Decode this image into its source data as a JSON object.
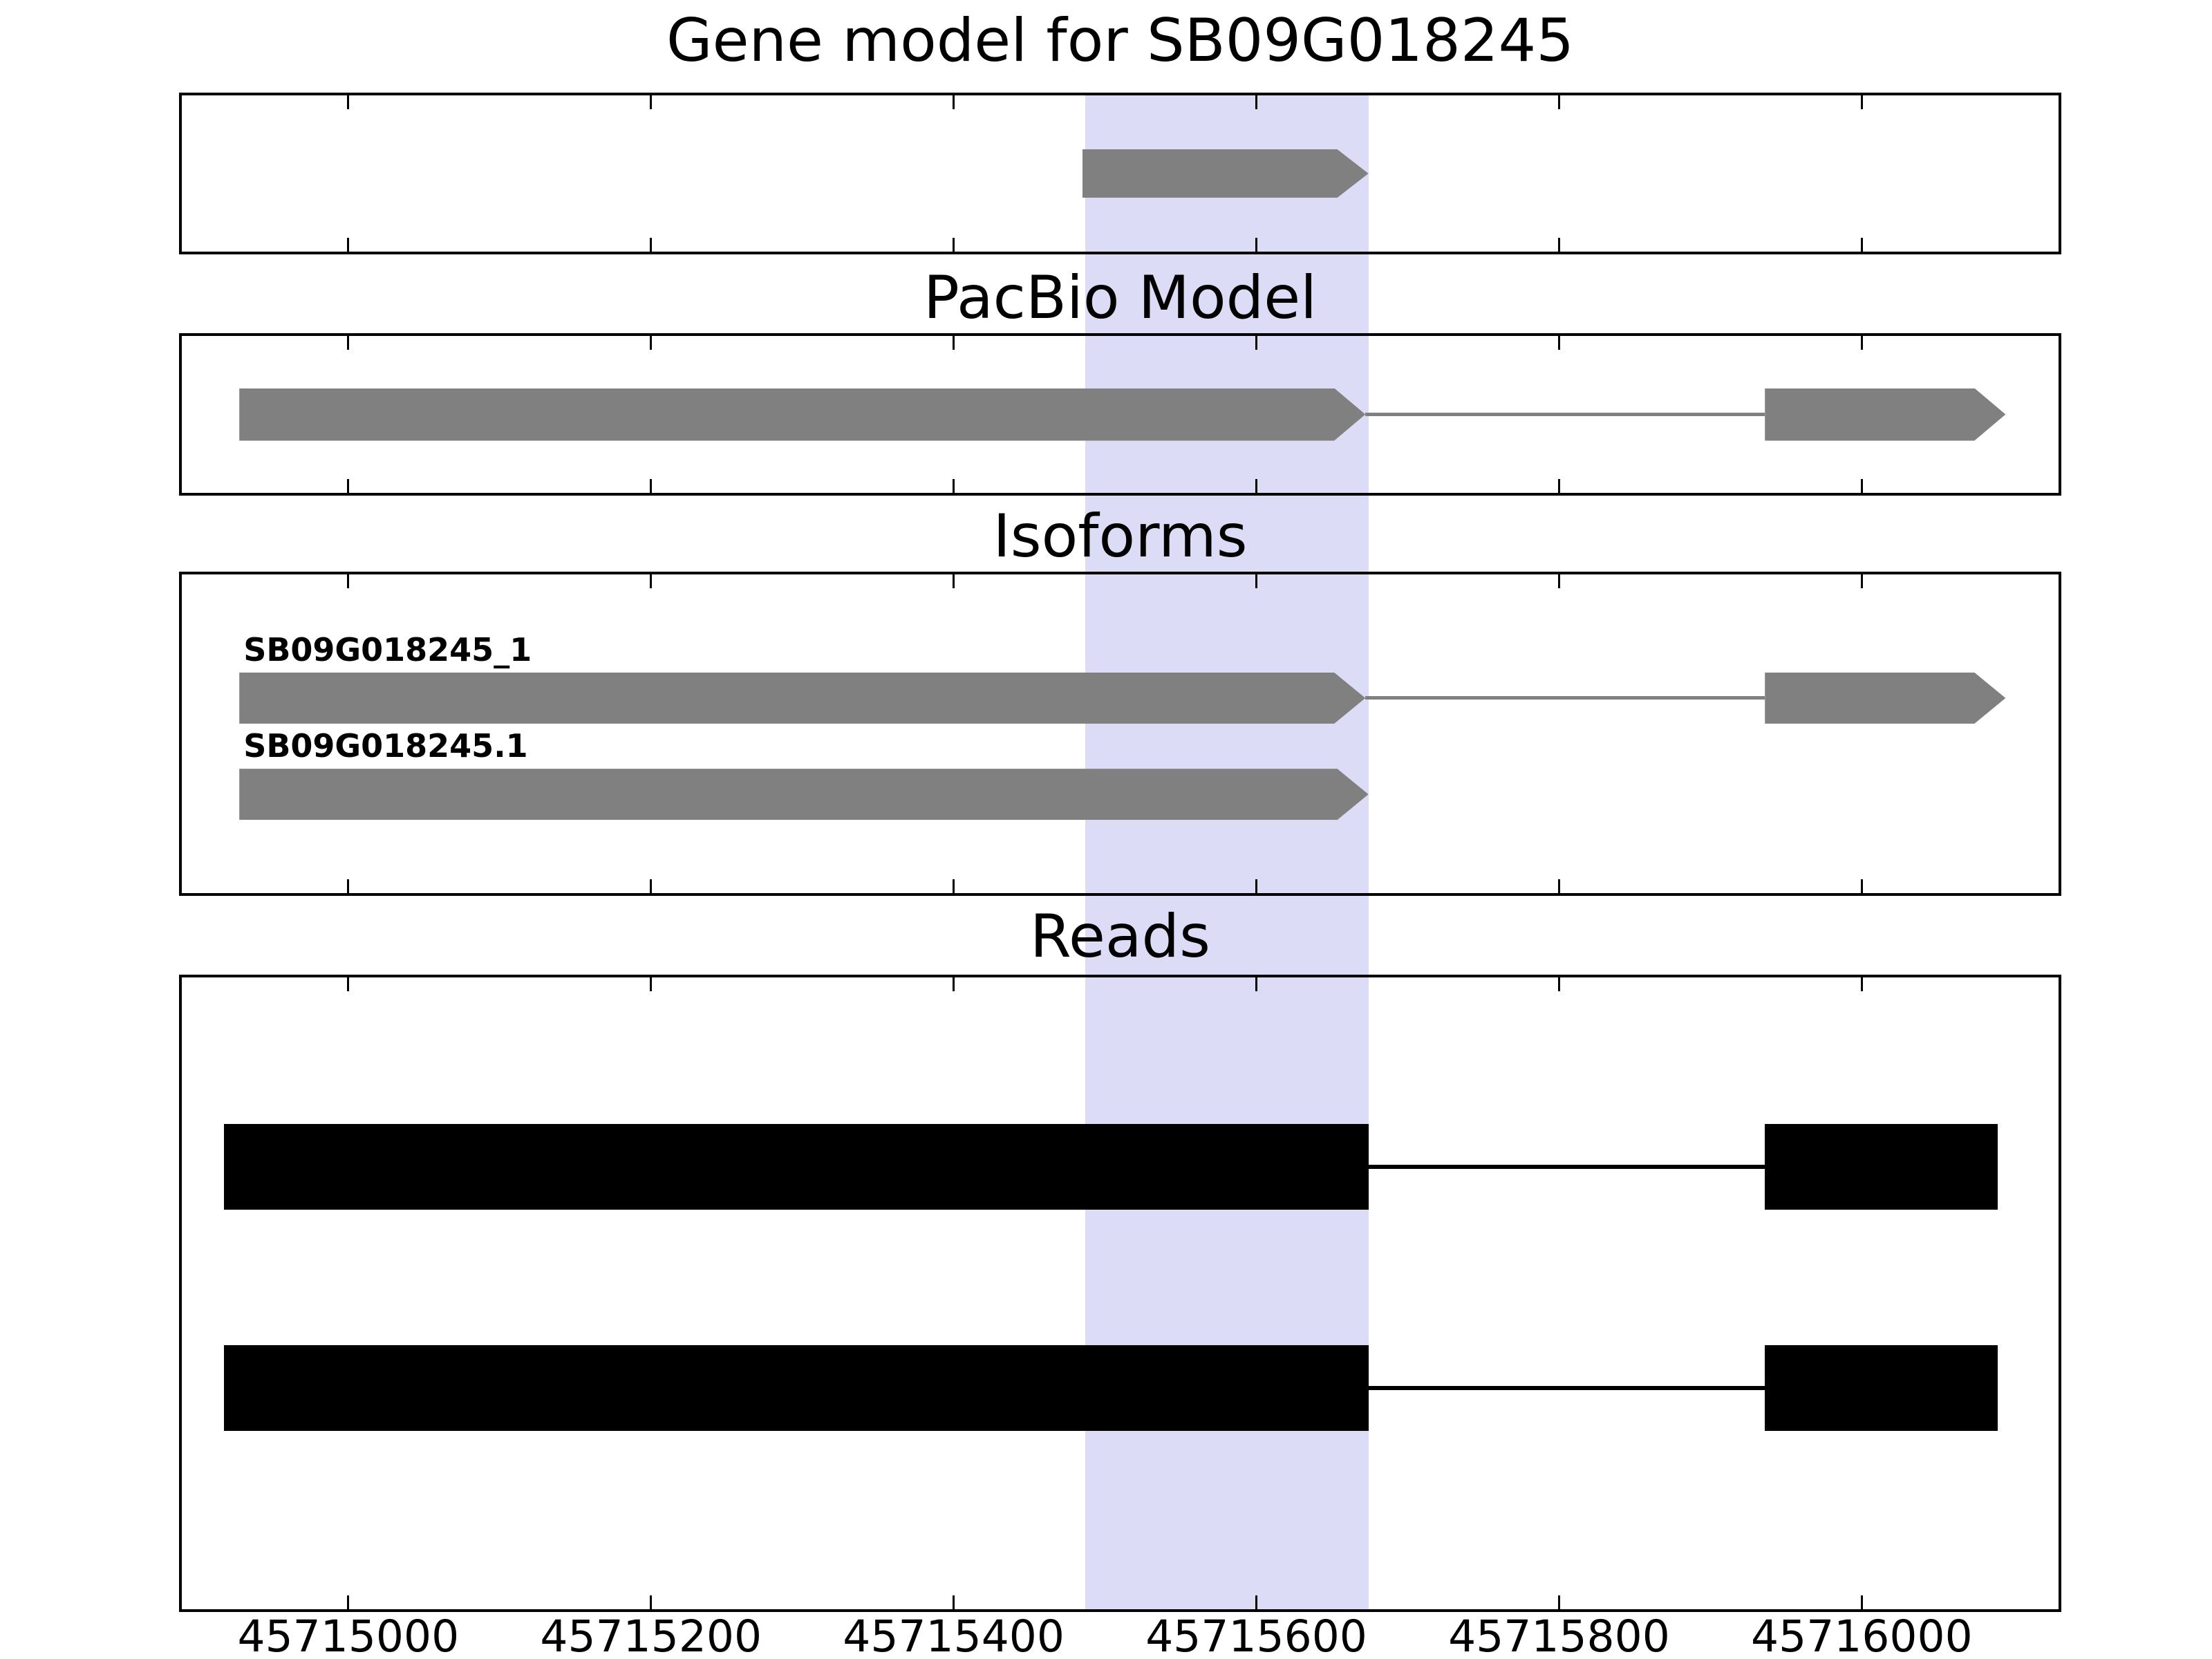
{
  "chart_data": {
    "type": "gene-model-tracks",
    "xlim": [
      45714890,
      45716130
    ],
    "xticks": [
      45715000,
      45715200,
      45715400,
      45715600,
      45715800,
      45716000
    ],
    "highlight_region": {
      "start": 45715487,
      "end": 45715674,
      "color": "#dcdcf6"
    },
    "colors": {
      "model": "#808080",
      "read": "#000000"
    },
    "panels": [
      {
        "title": "Gene model for SB09G018245",
        "features": [
          {
            "name": "SB09G018245",
            "label": "",
            "color_key": "model",
            "arrow": true,
            "exons": [
              [
                45715485,
                45715674
              ]
            ],
            "introns": []
          }
        ]
      },
      {
        "title": "PacBio Model",
        "features": [
          {
            "name": "pacbio-model",
            "label": "",
            "color_key": "model",
            "arrow": true,
            "exons": [
              [
                45714928,
                45715672
              ],
              [
                45715936,
                45716095
              ]
            ],
            "introns": [
              [
                45715672,
                45715936
              ]
            ]
          }
        ]
      },
      {
        "title": "Isoforms",
        "features": [
          {
            "name": "isoform-SB09G018245_1",
            "label": "SB09G018245_1",
            "color_key": "model",
            "arrow": true,
            "exons": [
              [
                45714928,
                45715672
              ],
              [
                45715936,
                45716095
              ]
            ],
            "introns": [
              [
                45715672,
                45715936
              ]
            ]
          },
          {
            "name": "isoform-SB09G018245.1",
            "label": "SB09G018245.1",
            "color_key": "model",
            "arrow": true,
            "exons": [
              [
                45714928,
                45715674
              ]
            ],
            "introns": []
          }
        ]
      },
      {
        "title": "Reads",
        "features": [
          {
            "name": "read-1",
            "label": "",
            "color_key": "read",
            "arrow": false,
            "exons": [
              [
                45714918,
                45715674
              ],
              [
                45715936,
                45716090
              ]
            ],
            "introns": [
              [
                45715674,
                45715936
              ]
            ]
          },
          {
            "name": "read-2",
            "label": "",
            "color_key": "read",
            "arrow": false,
            "exons": [
              [
                45714918,
                45715674
              ],
              [
                45715936,
                45716090
              ]
            ],
            "introns": [
              [
                45715674,
                45715936
              ]
            ]
          }
        ]
      }
    ]
  }
}
